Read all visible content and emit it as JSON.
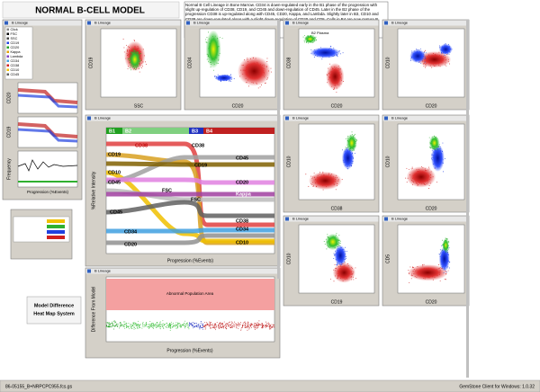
{
  "header": {
    "title": "NORMAL B-CELL MODEL",
    "description": "Normal B Cell Lineage in Bone Marrow. CD34 is down-regulated early in the B1 phase of the progression with slight up-regulation of CD38, CD19, and CD45 and down-regulation of CD45. Later in the B2 phase of the progression CD38 is up-regulated along with CD45, CD20, Kappa, and Lambda. Slightly later in B3, CD10 and CD38 are down-regulated along with a slight down-regulation of CD20 and CD5. Cells in B4 are now mature B cells."
  },
  "sidebar": {
    "title": "B Lineage",
    "items": [
      "Click",
      "FSC",
      "SSC",
      "CD19",
      "CD20",
      "Kappa",
      "Lambda",
      "CD34",
      "CD38",
      "CD10",
      "CD45"
    ],
    "x_label": "Progression (%Events)",
    "y_label": "Frequency",
    "small_y_labels": [
      "CD20",
      "CD19"
    ]
  },
  "panels": [
    {
      "title": "B Lineage",
      "x_label": "SSC",
      "y_label": "CD19"
    },
    {
      "title": "B Lineage",
      "x_label": "CD20",
      "y_label": "CD34"
    },
    {
      "title": "B Lineage",
      "x_label": "CD20",
      "y_label": "CD38",
      "annotation": "B2 Plasma"
    },
    {
      "title": "B Lineage",
      "x_label": "CD20",
      "y_label": "CD10"
    },
    {
      "title": "B Lineage",
      "x_label": "CD38",
      "y_label": "CD10"
    },
    {
      "title": "B Lineage",
      "x_label": "CD20",
      "y_label": "CD10"
    },
    {
      "title": "B Lineage",
      "x_label": "CD19",
      "y_label": "CD10"
    },
    {
      "title": "B Lineage",
      "x_label": "CD20",
      "y_label": "CD5"
    }
  ],
  "main_plot": {
    "title": "B Lineage",
    "stages": [
      "B1",
      "B2",
      "B3",
      "B4"
    ],
    "x_label": "Progression (%Events)",
    "y_label": "%Relative Intensity",
    "markers": [
      "CD38",
      "CD19",
      "CD10",
      "CD45",
      "FSC",
      "CD45",
      "CD34",
      "CD20",
      "CD38",
      "CD45",
      "CD19",
      "CD20",
      "Kappa",
      "FSC",
      "CD38",
      "CD34",
      "CD10"
    ]
  },
  "difference_plot": {
    "title": "B Lineage",
    "area_label": "Abnormal Population Area",
    "x_label": "Progression (%Events)",
    "y_label": "Difference From Model"
  },
  "heat_map_label": [
    "Model Difference",
    "Heat Map System"
  ],
  "status": {
    "file": "86-05155_B+NRPCPC955.fcs.gs",
    "client": "GemStone Client for Windows: 1.0.32"
  }
}
